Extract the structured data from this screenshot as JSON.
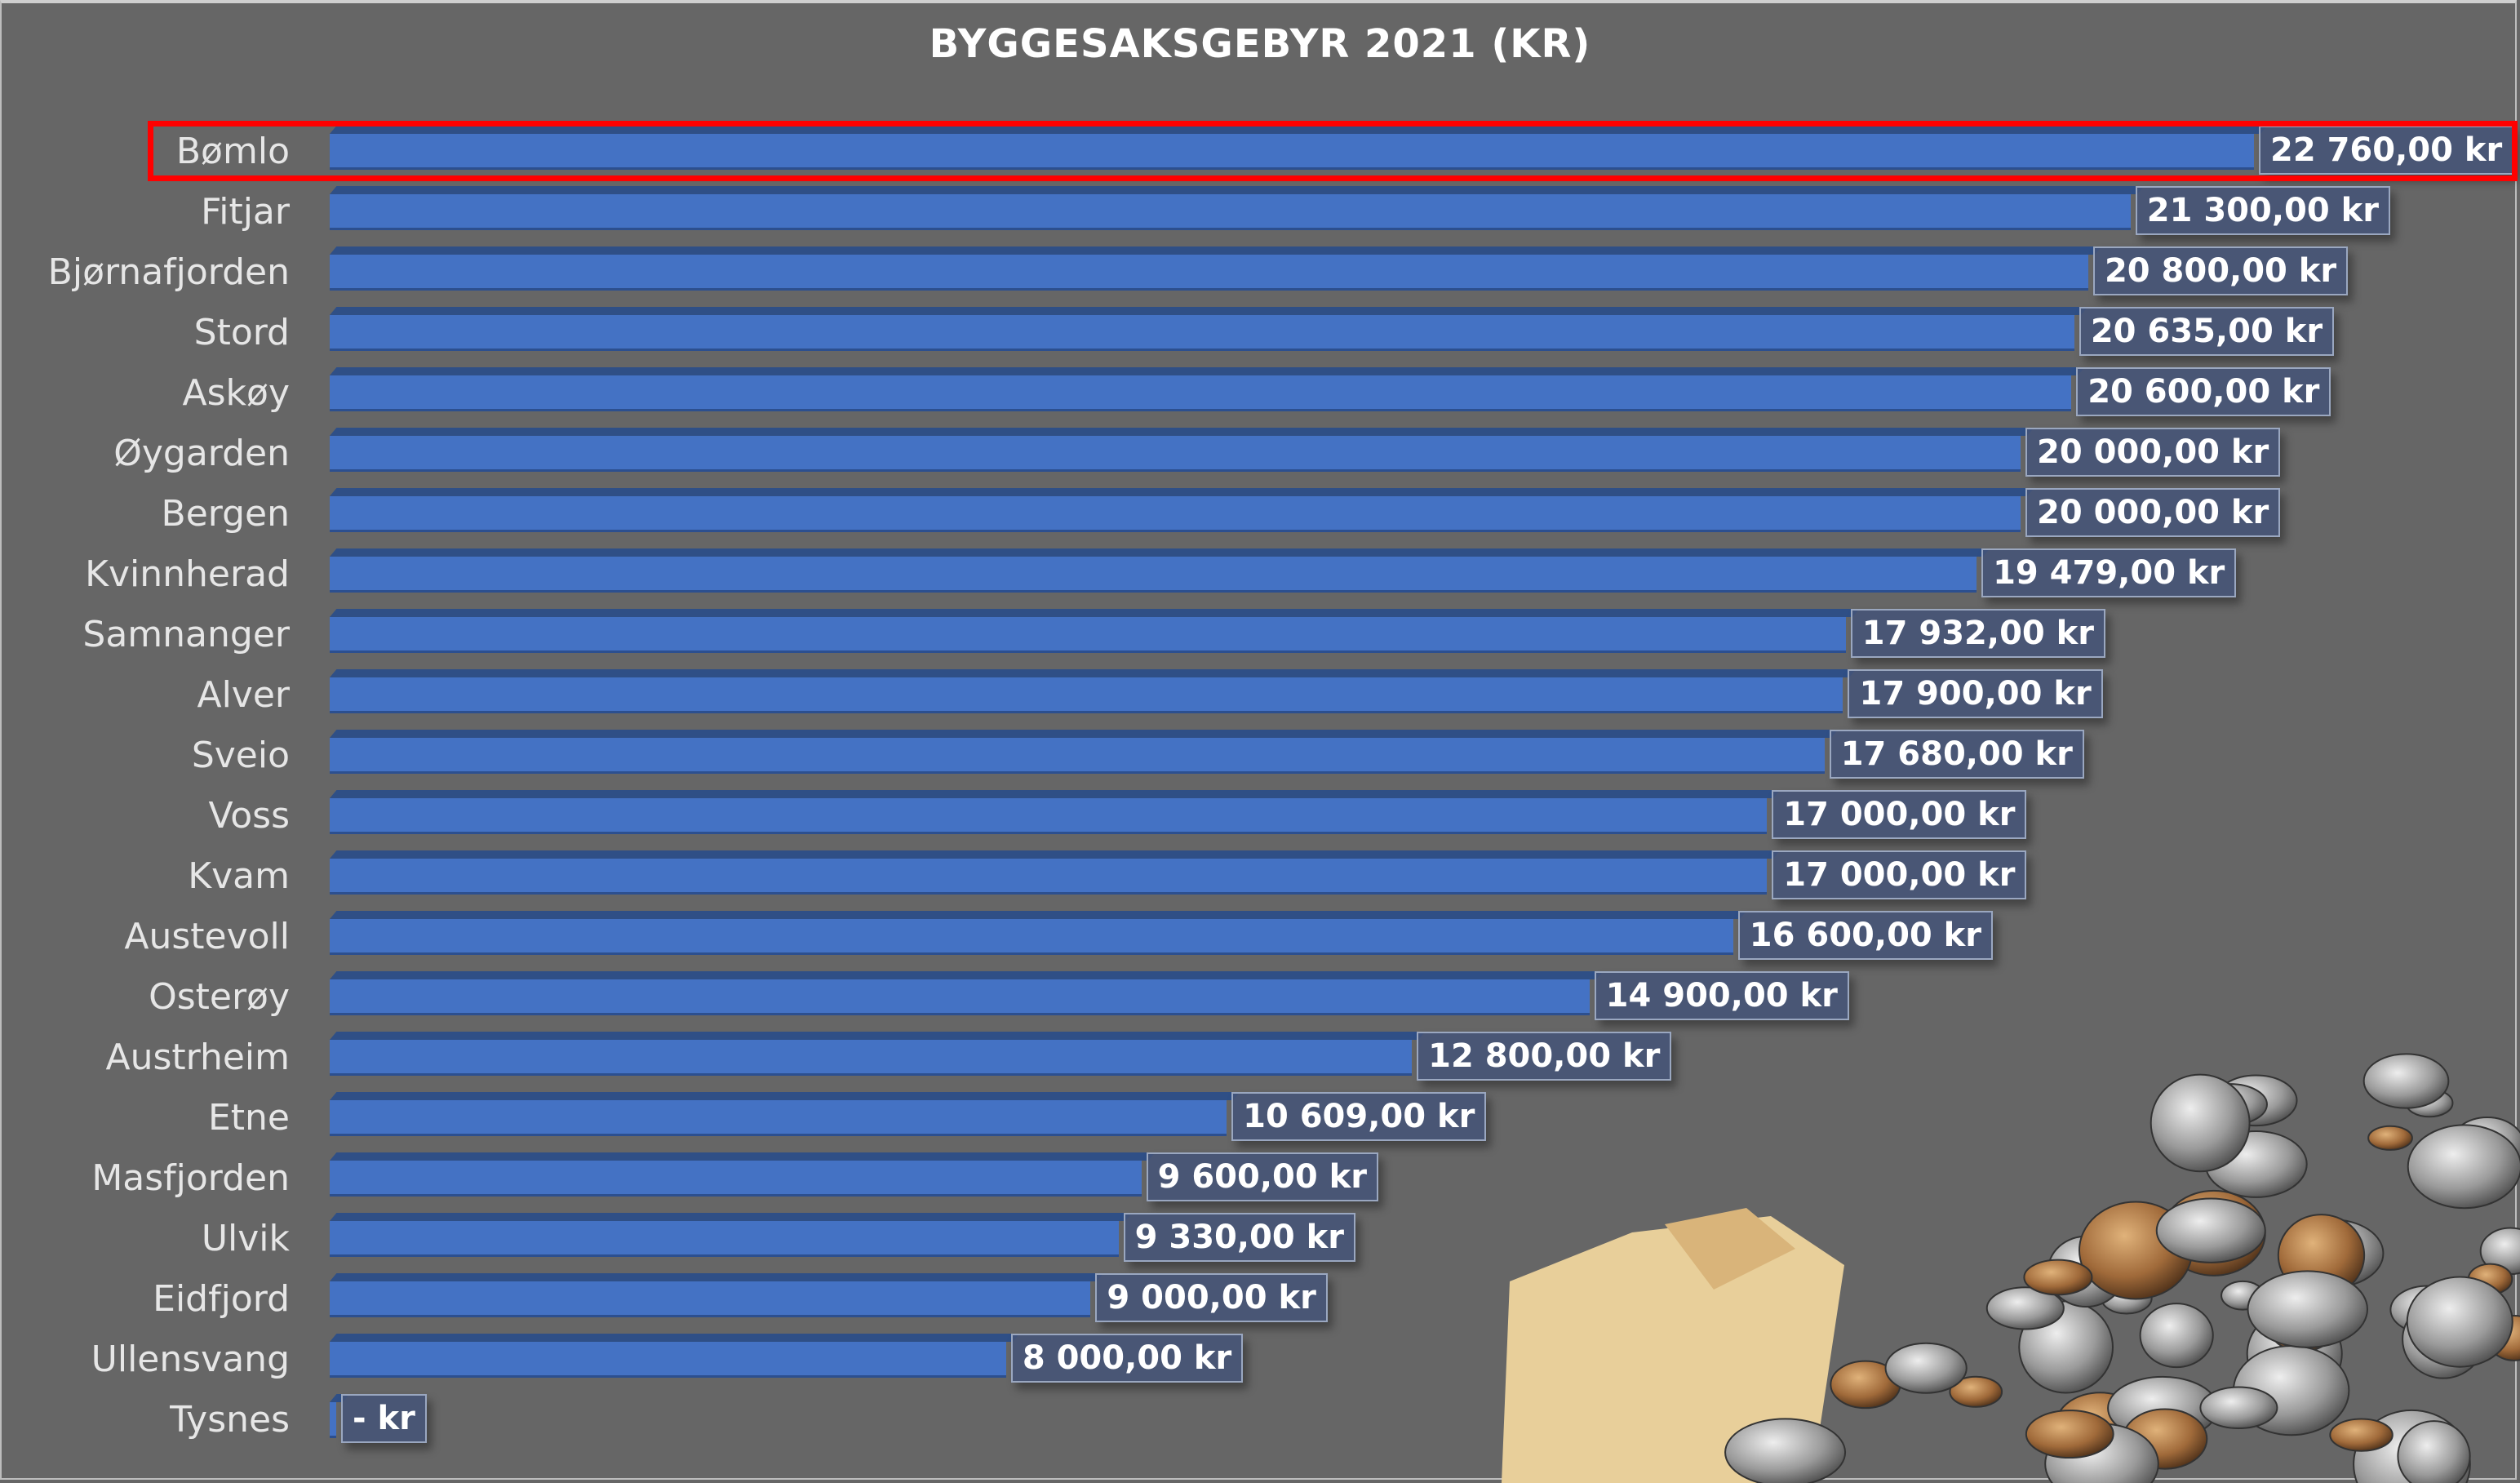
{
  "chart_data": {
    "type": "bar",
    "orientation": "horizontal",
    "title": "BYGGESAKSGEBYR 2021 (KR)",
    "categories": [
      "Bømlo",
      "Fitjar",
      "Bjørnafjorden",
      "Stord",
      "Askøy",
      "Øygarden",
      "Bergen",
      "Kvinnherad",
      "Samnanger",
      "Alver",
      "Sveio",
      "Voss",
      "Kvam",
      "Austevoll",
      "Osterøy",
      "Austrheim",
      "Etne",
      "Masfjorden",
      "Ulvik",
      "Eidfjord",
      "Ullensvang",
      "Tysnes"
    ],
    "values": [
      22760,
      21300,
      20800,
      20635,
      20600,
      20000,
      20000,
      19479,
      17932,
      17900,
      17680,
      17000,
      17000,
      16600,
      14900,
      12800,
      10609,
      9600,
      9330,
      9000,
      8000,
      0
    ],
    "data_labels": [
      "22 760,00 kr",
      "21 300,00 kr",
      "20 800,00 kr",
      "20 635,00 kr",
      "20 600,00 kr",
      "20 000,00 kr",
      "20 000,00 kr",
      "19 479,00 kr",
      "17 932,00 kr",
      "17 900,00 kr",
      "17 680,00 kr",
      "17 000,00 kr",
      "17 000,00 kr",
      "16 600,00 kr",
      "14 900,00 kr",
      "12 800,00 kr",
      "10 609,00 kr",
      "9 600,00 kr",
      "9 330,00 kr",
      "9 000,00 kr",
      "8 000,00 kr",
      "-   kr"
    ],
    "highlighted_category": "Bømlo",
    "grid": false,
    "legend": "none",
    "colors": {
      "bar": "#4472c4",
      "background": "#666666",
      "highlight": "#ff0000",
      "label_box": "#455478"
    }
  }
}
